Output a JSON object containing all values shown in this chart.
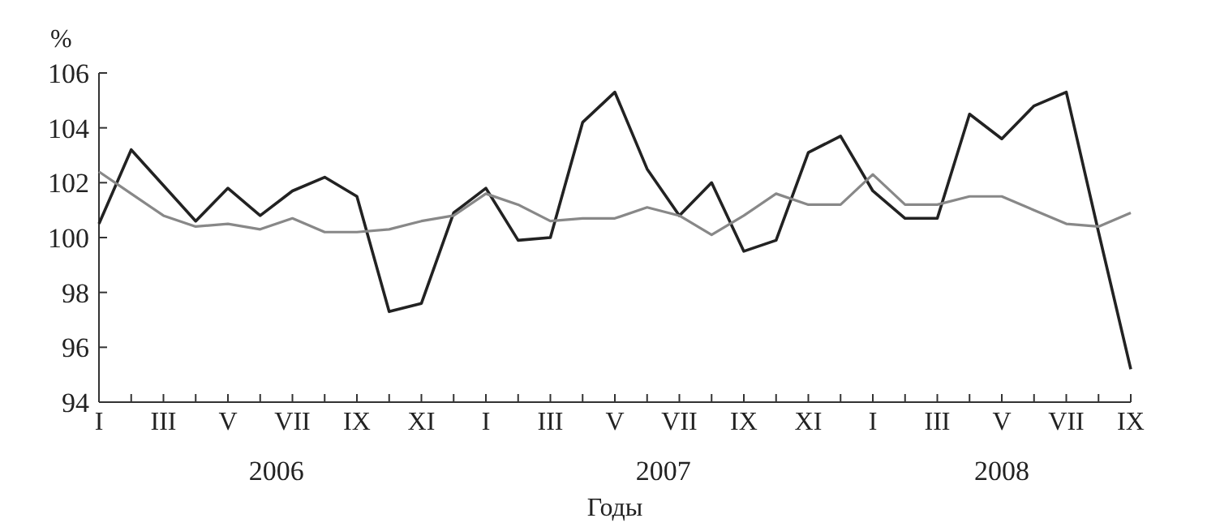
{
  "chart_data": {
    "type": "line",
    "ylabel": "%",
    "xlabel": "Годы",
    "categories": [
      "I",
      null,
      "III",
      null,
      "V",
      null,
      "VII",
      null,
      "IX",
      null,
      "XI",
      null,
      "I",
      null,
      "III",
      null,
      "V",
      null,
      "VII",
      null,
      "IX",
      null,
      "XI",
      null,
      "I",
      null,
      "III",
      null,
      "V",
      null,
      "VII",
      null,
      "IX"
    ],
    "series": [
      {
        "color": "#222222",
        "values": [
          100.5,
          103.2,
          101.9,
          100.6,
          101.8,
          100.8,
          101.7,
          102.2,
          101.5,
          97.3,
          97.6,
          100.9,
          101.8,
          99.9,
          100.0,
          104.2,
          105.3,
          102.5,
          100.8,
          102.0,
          99.5,
          99.9,
          103.1,
          103.7,
          101.7,
          100.7,
          100.7,
          104.5,
          103.6,
          104.8,
          105.3,
          100.2,
          95.2
        ]
      },
      {
        "color": "#888888",
        "values": [
          102.4,
          101.6,
          100.8,
          100.4,
          100.5,
          100.3,
          100.7,
          100.2,
          100.2,
          100.3,
          100.6,
          100.8,
          101.6,
          101.2,
          100.6,
          100.7,
          100.7,
          101.1,
          100.8,
          100.1,
          100.8,
          101.6,
          101.2,
          101.2,
          102.3,
          101.2,
          101.2,
          101.5,
          101.5,
          101.0,
          100.5,
          100.4,
          100.9
        ]
      }
    ],
    "ylim": [
      94,
      106
    ],
    "yticks": [
      94,
      96,
      98,
      100,
      102,
      104,
      106
    ],
    "grid": false,
    "annotations": [
      "2006",
      "2007",
      "2008"
    ]
  }
}
